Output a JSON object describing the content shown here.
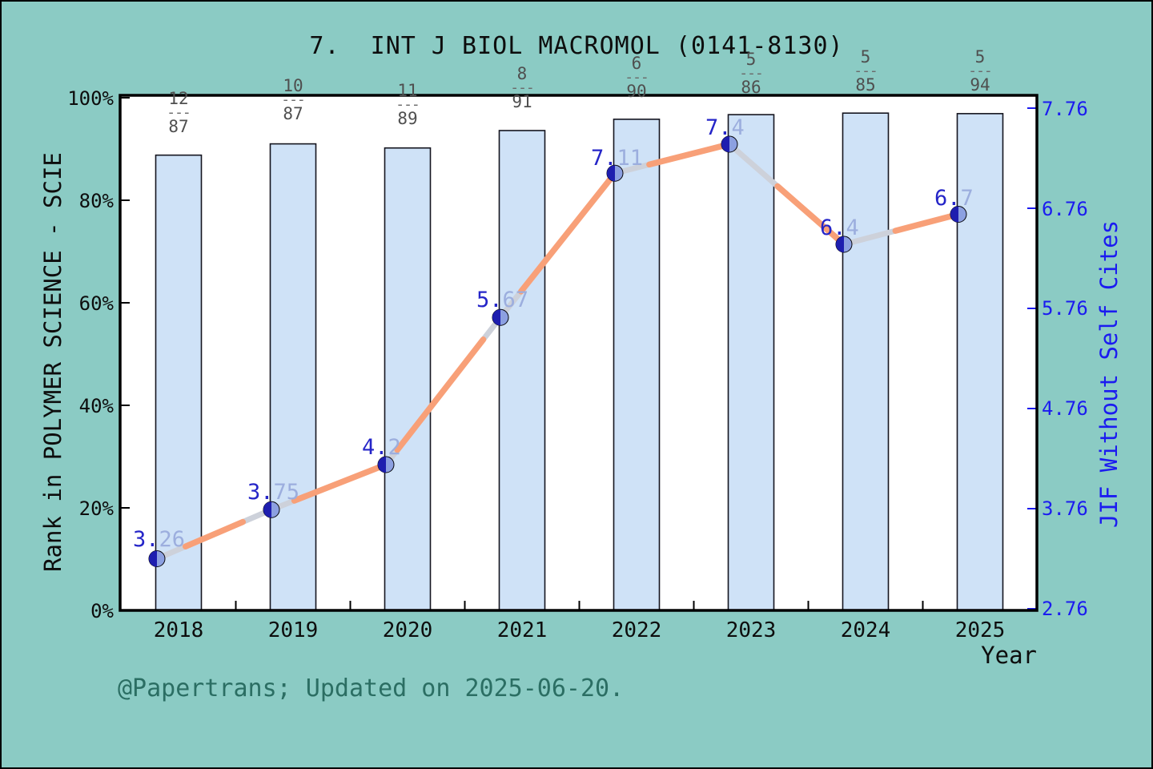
{
  "title": "7.  INT J BIOL MACROMOL (0141-8130)",
  "footer": "@Papertrans; Updated on 2025-06-20.",
  "axes": {
    "left_label": "Rank in POLYMER SCIENCE - SCIE",
    "left_ticks": [
      "0%",
      "20%",
      "40%",
      "60%",
      "80%",
      "100%"
    ],
    "right_label": "JIF Without Self Cites",
    "right_ticks": [
      "2.76",
      "3.76",
      "4.76",
      "5.76",
      "6.76",
      "7.76"
    ],
    "x_label": "Year"
  },
  "ui": {
    "fraction_separator": "---"
  },
  "chart_data": {
    "type": "bar+line",
    "title": "7.  INT J BIOL MACROMOL (0141-8130)",
    "categories": [
      "2018",
      "2019",
      "2020",
      "2021",
      "2022",
      "2023",
      "2024",
      "2025"
    ],
    "bars": {
      "name": "Rank in POLYMER SCIENCE - SCIE (percentile)",
      "unit": "%",
      "ylim": [
        0,
        100
      ],
      "values_pct": [
        88.8,
        91.0,
        90.2,
        93.6,
        95.8,
        96.7,
        97.0,
        96.9
      ],
      "fractions": [
        {
          "num": "12",
          "den": "87"
        },
        {
          "num": "10",
          "den": "87"
        },
        {
          "num": "11",
          "den": "89"
        },
        {
          "num": "8",
          "den": "91"
        },
        {
          "num": "6",
          "den": "90"
        },
        {
          "num": "5",
          "den": "86"
        },
        {
          "num": "5",
          "den": "85"
        },
        {
          "num": "5",
          "den": "94"
        }
      ]
    },
    "line": {
      "name": "JIF Without Self Cites",
      "ylim": [
        2.76,
        7.76
      ],
      "right_tick_values": [
        2.76,
        3.76,
        4.76,
        5.76,
        6.76,
        7.76
      ],
      "values": [
        3.26,
        3.75,
        4.2,
        5.67,
        7.11,
        7.4,
        6.4,
        6.7
      ],
      "labels": [
        {
          "dark": "3.",
          "light": "26"
        },
        {
          "dark": "3.",
          "light": "75"
        },
        {
          "dark": "4.",
          "light": "2"
        },
        {
          "dark": "5.",
          "light": "67"
        },
        {
          "dark": "7.",
          "light": "11"
        },
        {
          "dark": "7.",
          "light": "4"
        },
        {
          "dark": "6.",
          "light": "4"
        },
        {
          "dark": "6.",
          "light": "7"
        }
      ]
    }
  },
  "colors": {
    "background": "#8bcbc4",
    "plot_bg": "#ffffff",
    "bar_fill": "#cfe2f7",
    "bar_edge": "#15151f",
    "line_orange": "#f8a078",
    "line_gray": "#cdd1da",
    "marker_dark": "#1e1eaf",
    "marker_light": "#8ca0e1",
    "point_label_dark": "#2525c8",
    "point_label_light": "#9caede",
    "right_axis_blue": "#1b1bf0",
    "fraction_gray": "#4f4f4f",
    "footer_teal": "#2b6e63",
    "axis_black": "#000000"
  }
}
